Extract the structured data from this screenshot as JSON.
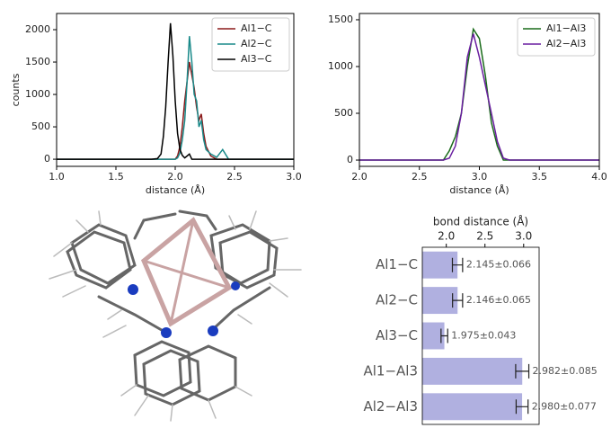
{
  "chart_data": [
    {
      "type": "line",
      "xlabel": "distance (Å)",
      "ylabel": "counts",
      "x": [
        1.0,
        1.8,
        1.85,
        1.88,
        1.9,
        1.92,
        1.94,
        1.96,
        1.98,
        2.0,
        2.02,
        2.04,
        2.06,
        2.08,
        2.1,
        2.12,
        2.14,
        2.16,
        2.18,
        2.2,
        2.22,
        2.24,
        2.26,
        2.3,
        2.35,
        2.4,
        2.45,
        3.0
      ],
      "series": [
        {
          "name": "Al1−C",
          "color": "#8b1a1a",
          "values": [
            0,
            0,
            0,
            0,
            0,
            0,
            0,
            0,
            0,
            0,
            50,
            200,
            500,
            900,
            1200,
            1500,
            1300,
            1100,
            800,
            600,
            700,
            400,
            200,
            50,
            0,
            0,
            0,
            0
          ]
        },
        {
          "name": "Al2−C",
          "color": "#1a8a8a",
          "values": [
            0,
            0,
            0,
            0,
            0,
            0,
            0,
            0,
            0,
            0,
            20,
            100,
            300,
            600,
            1200,
            1900,
            1500,
            1000,
            900,
            500,
            600,
            300,
            150,
            80,
            30,
            150,
            0,
            0
          ]
        },
        {
          "name": "Al3−C",
          "color": "#000000",
          "values": [
            0,
            0,
            10,
            80,
            350,
            800,
            1500,
            2100,
            1600,
            900,
            400,
            150,
            60,
            20,
            50,
            80,
            0,
            0,
            0,
            0,
            0,
            0,
            0,
            0,
            0,
            0,
            0,
            0
          ]
        }
      ],
      "xlim": [
        1.0,
        3.0
      ],
      "xticks": [
        {
          "value": 1,
          "label": "1.0"
        },
        1.5,
        {
          "value": 2,
          "label": "2.0"
        },
        2.5,
        {
          "value": 3,
          "label": "3.0"
        }
      ],
      "ylim": [
        -110,
        2250
      ],
      "yticks": [
        0,
        500,
        1000,
        1500,
        2000
      ],
      "legend": "upper right"
    },
    {
      "type": "line",
      "xlabel": "distance (Å)",
      "x": [
        2.0,
        2.7,
        2.75,
        2.8,
        2.85,
        2.9,
        2.95,
        3.0,
        3.05,
        3.1,
        3.15,
        3.2,
        3.25,
        4.0
      ],
      "series": [
        {
          "name": "Al1−Al3",
          "color": "#1a6b1a",
          "values": [
            0,
            0,
            100,
            250,
            500,
            1000,
            1400,
            1300,
            900,
            400,
            150,
            0,
            0,
            0
          ]
        },
        {
          "name": "Al2−Al3",
          "color": "#6a1fa0",
          "values": [
            0,
            0,
            20,
            150,
            500,
            1100,
            1350,
            1100,
            800,
            500,
            200,
            20,
            0,
            0
          ]
        }
      ],
      "xlim": [
        2.0,
        4.0
      ],
      "xticks": [
        {
          "value": 2,
          "label": "2.0"
        },
        2.5,
        {
          "value": 3,
          "label": "3.0"
        },
        3.5,
        {
          "value": 4,
          "label": "4.0"
        }
      ],
      "ylim": [
        -67,
        1567
      ],
      "yticks": [
        0,
        500,
        1000,
        1500
      ],
      "legend": "upper right"
    },
    {
      "type": "bar",
      "xlabel": "bond distance (Å)",
      "color": "#b0b0e0",
      "categories": [
        "Al1−C",
        "Al2−C",
        "Al3−C",
        "Al1−Al3",
        "Al2−Al3"
      ],
      "values": [
        2.145,
        2.146,
        1.975,
        2.982,
        2.98
      ],
      "errors": [
        0.066,
        0.065,
        0.043,
        0.085,
        0.077
      ],
      "value_labels": [
        "2.145±0.066",
        "2.146±0.065",
        "1.975±0.043",
        "2.982±0.085",
        "2.980±0.077"
      ],
      "xlim": [
        1.69,
        3.2
      ],
      "xticks": [
        {
          "value": 2,
          "label": "2.0"
        },
        2.5,
        {
          "value": 3,
          "label": "3.0"
        }
      ]
    }
  ]
}
